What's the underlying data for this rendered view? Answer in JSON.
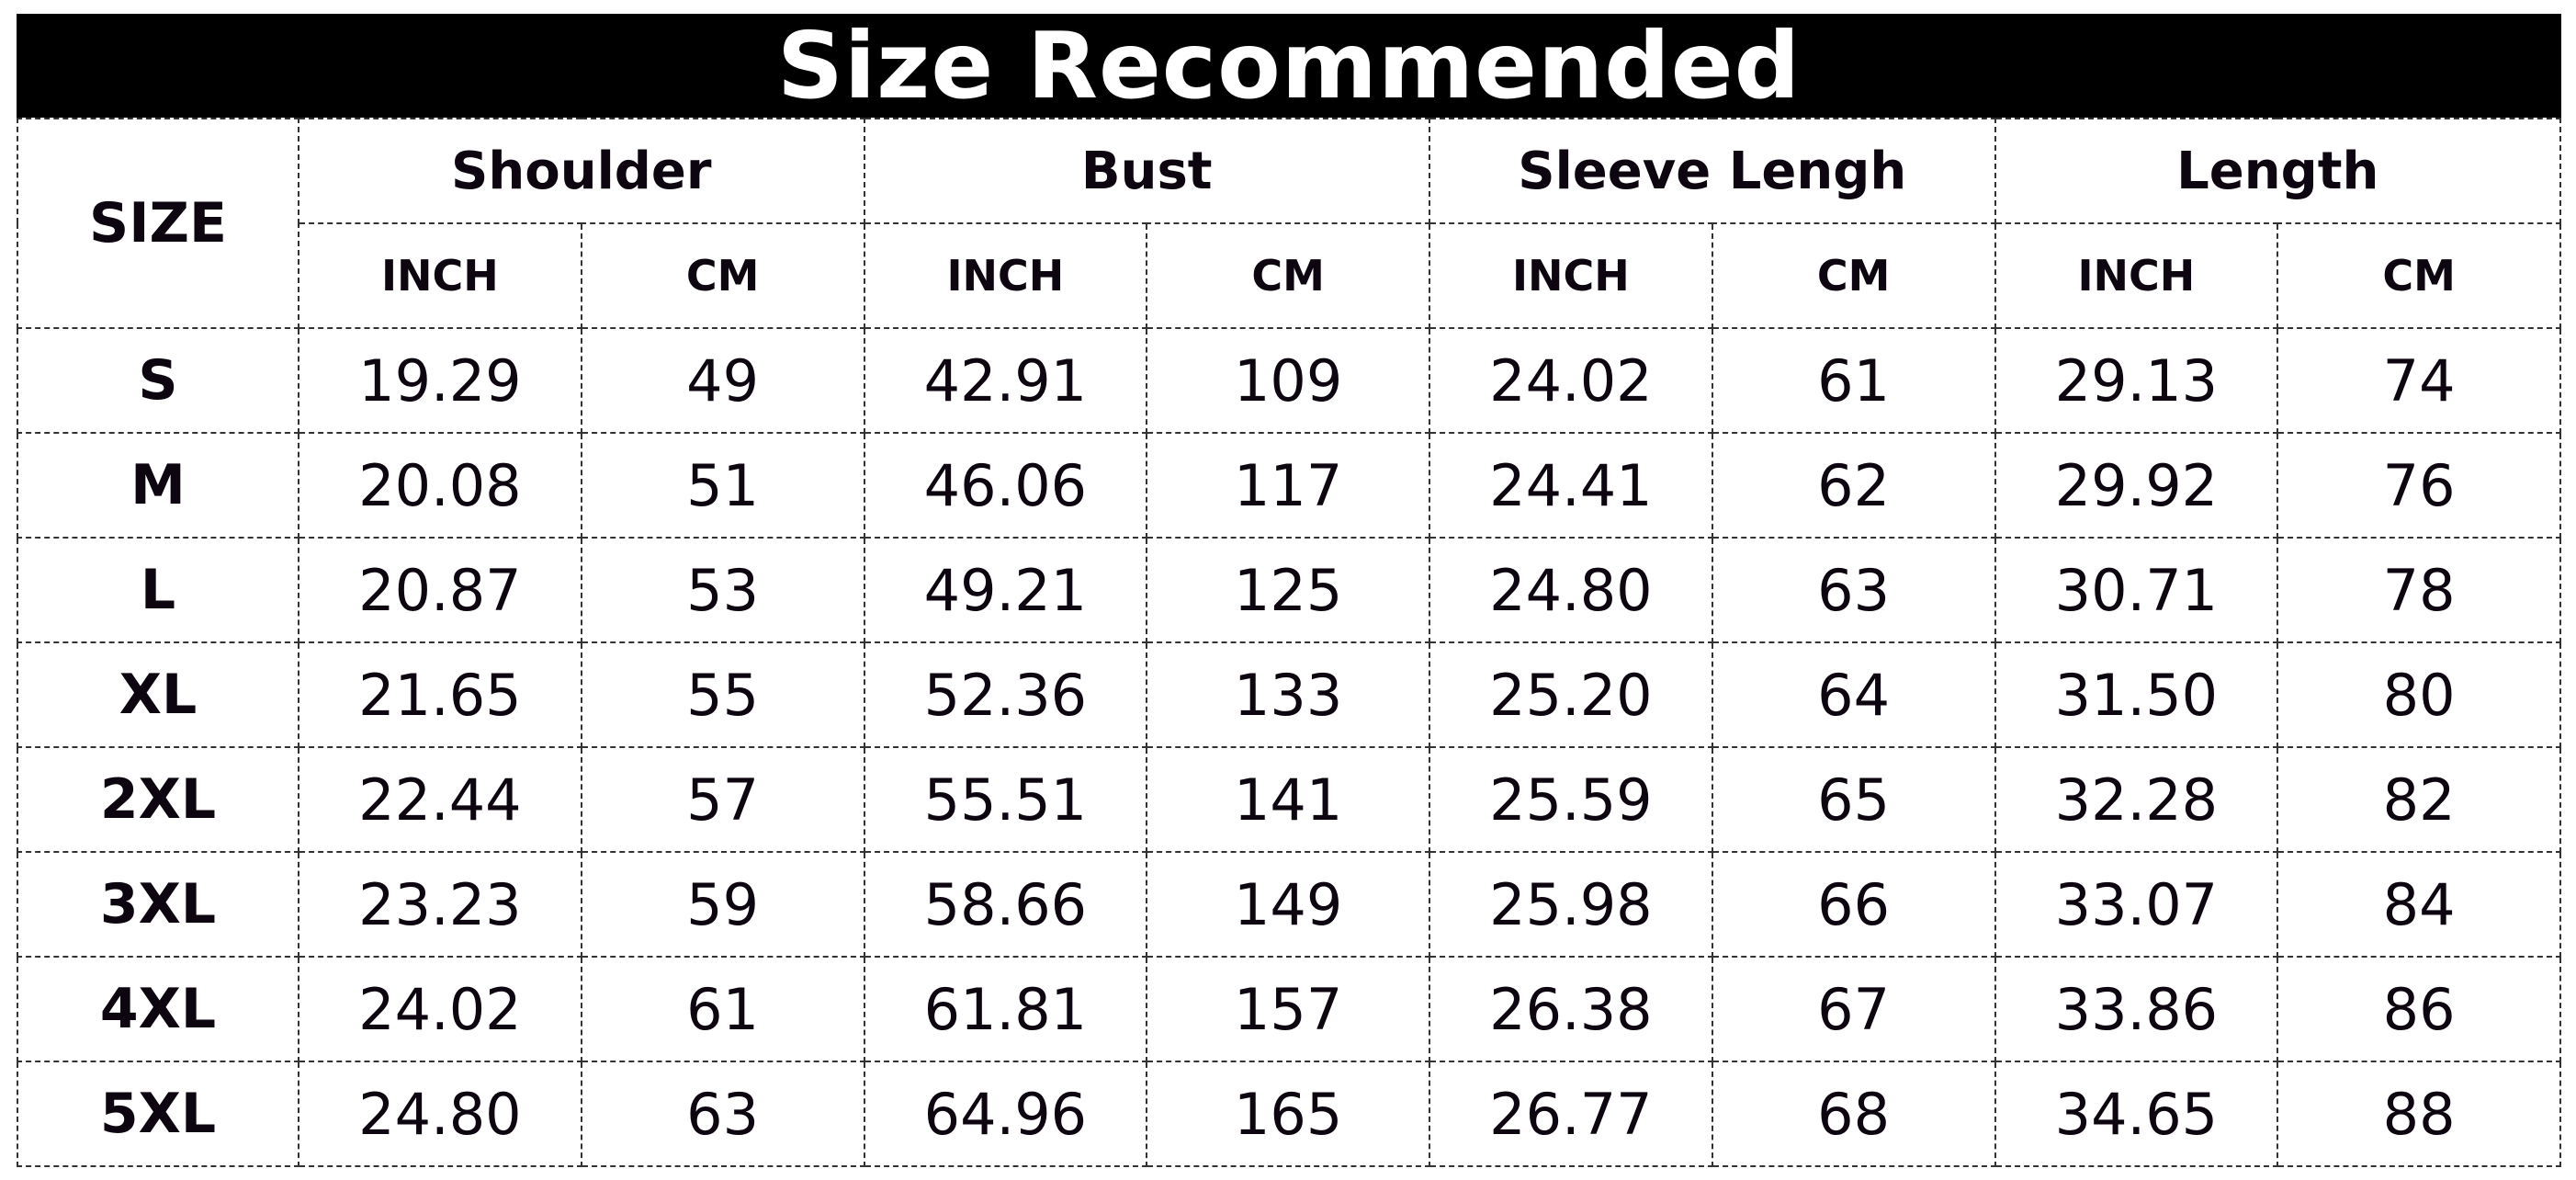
{
  "title": "Size Recommended",
  "size_header": "SIZE",
  "groups": [
    "Shoulder",
    "Bust",
    "Sleeve Lengh",
    "Length"
  ],
  "units": [
    "INCH",
    "CM"
  ],
  "rows": [
    [
      "S",
      "19.29",
      "49",
      "42.91",
      "109",
      "24.02",
      "61",
      "29.13",
      "74"
    ],
    [
      "M",
      "20.08",
      "51",
      "46.06",
      "117",
      "24.41",
      "62",
      "29.92",
      "76"
    ],
    [
      "L",
      "20.87",
      "53",
      "49.21",
      "125",
      "24.80",
      "63",
      "30.71",
      "78"
    ],
    [
      "XL",
      "21.65",
      "55",
      "52.36",
      "133",
      "25.20",
      "64",
      "31.50",
      "80"
    ],
    [
      "2XL",
      "22.44",
      "57",
      "55.51",
      "141",
      "25.59",
      "65",
      "32.28",
      "82"
    ],
    [
      "3XL",
      "23.23",
      "59",
      "58.66",
      "149",
      "25.98",
      "66",
      "33.07",
      "84"
    ],
    [
      "4XL",
      "24.02",
      "61",
      "61.81",
      "157",
      "26.38",
      "67",
      "33.86",
      "86"
    ],
    [
      "5XL",
      "24.80",
      "63",
      "64.96",
      "165",
      "26.77",
      "68",
      "34.65",
      "88"
    ]
  ]
}
